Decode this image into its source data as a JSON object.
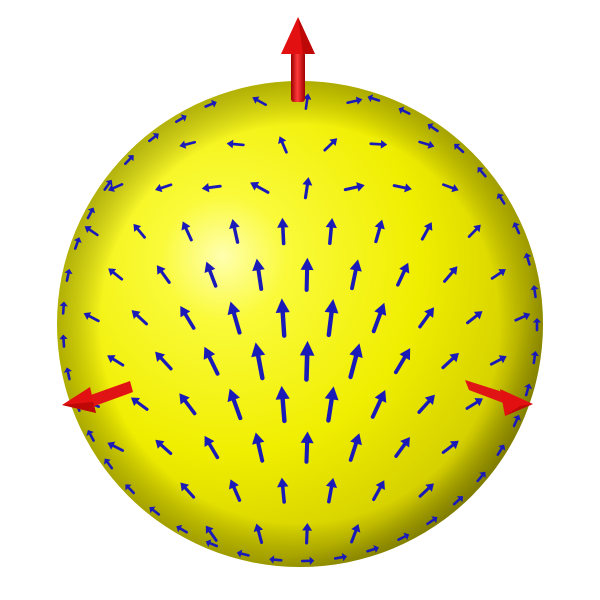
{
  "scene": {
    "object": "sphere",
    "sphere_color": "#f2f200",
    "sphere_highlight": "#ffff9a",
    "sphere_shadow": "#8f8a00",
    "field_arrow_color": "#1a1ab8",
    "axis_arrow_color": "#e01010",
    "axis_arrows": [
      {
        "name": "top-axis-arrow",
        "direction": "up"
      },
      {
        "name": "left-axis-arrow",
        "direction": "left"
      },
      {
        "name": "right-axis-arrow",
        "direction": "right"
      }
    ]
  }
}
